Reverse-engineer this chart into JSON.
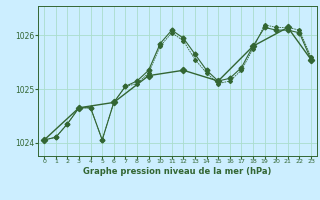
{
  "line1": {
    "x": [
      0,
      1,
      2,
      3,
      4,
      5,
      6,
      7,
      8,
      9,
      10,
      11,
      12,
      13,
      14,
      15,
      16,
      17,
      18,
      19,
      20,
      21,
      22,
      23
    ],
    "y": [
      1024.05,
      1024.1,
      1024.35,
      1024.65,
      1024.65,
      1024.05,
      1024.75,
      1025.05,
      1025.15,
      1025.35,
      1025.85,
      1026.1,
      1025.95,
      1025.65,
      1025.35,
      1025.15,
      1025.2,
      1025.4,
      1025.8,
      1026.15,
      1026.1,
      1026.1,
      1026.05,
      1025.55
    ]
  },
  "line2": {
    "x": [
      0,
      1,
      2,
      3,
      4,
      5,
      6,
      7,
      8,
      9,
      10,
      11,
      12,
      13,
      14,
      15,
      16,
      17,
      18,
      19,
      20,
      21,
      22,
      23
    ],
    "y": [
      1024.05,
      1024.1,
      1024.35,
      1024.65,
      1024.65,
      1024.05,
      1024.75,
      1025.05,
      1025.1,
      1025.3,
      1025.8,
      1026.05,
      1025.9,
      1025.55,
      1025.3,
      1025.1,
      1025.15,
      1025.35,
      1025.75,
      1026.2,
      1026.15,
      1026.15,
      1026.1,
      1025.6
    ]
  },
  "line3": {
    "x": [
      0,
      3,
      6,
      9,
      12,
      15,
      18,
      21,
      23
    ],
    "y": [
      1024.05,
      1024.65,
      1024.75,
      1025.25,
      1025.35,
      1025.15,
      1025.8,
      1026.15,
      1025.55
    ]
  },
  "color": "#336633",
  "bg_color": "#cceeff",
  "grid_color": "#aaddcc",
  "xlabel": "Graphe pression niveau de la mer (hPa)",
  "xlim": [
    -0.5,
    23.5
  ],
  "ylim": [
    1023.75,
    1026.55
  ],
  "yticks": [
    1024,
    1025,
    1026
  ],
  "xticks": [
    0,
    1,
    2,
    3,
    4,
    5,
    6,
    7,
    8,
    9,
    10,
    11,
    12,
    13,
    14,
    15,
    16,
    17,
    18,
    19,
    20,
    21,
    22,
    23
  ]
}
